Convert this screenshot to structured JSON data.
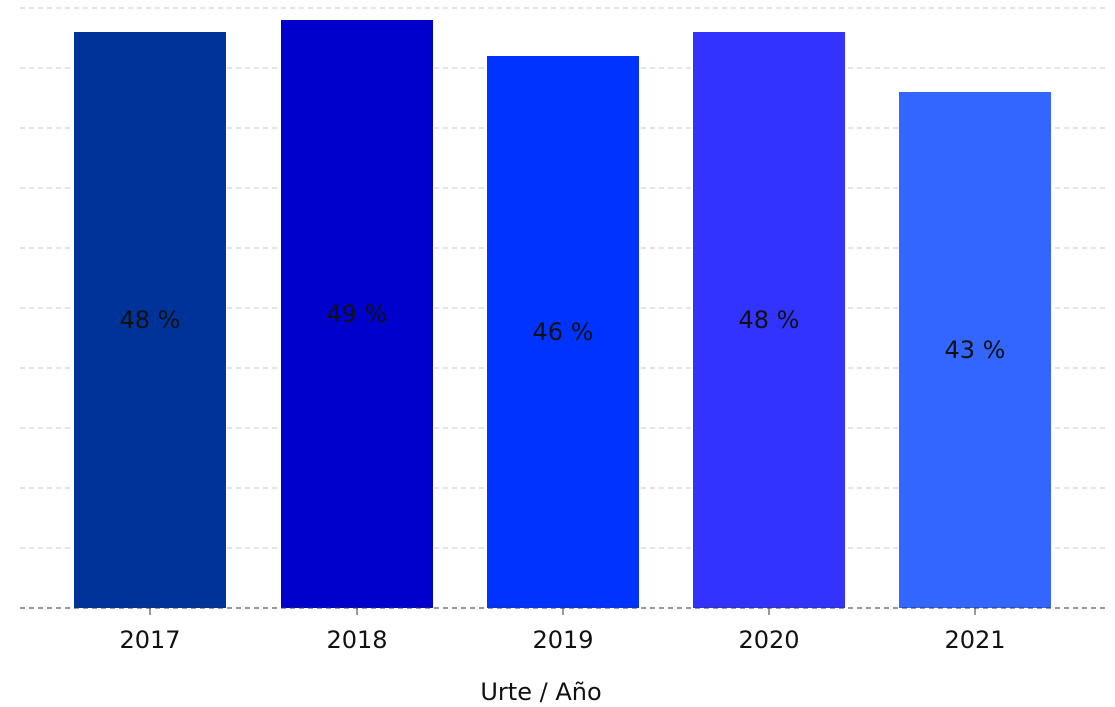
{
  "chart_data": {
    "type": "bar",
    "categories": [
      "2017",
      "2018",
      "2019",
      "2020",
      "2021"
    ],
    "values": [
      48,
      49,
      46,
      48,
      43
    ],
    "data_labels": [
      "48 %",
      "49 %",
      "46 %",
      "48 %",
      "43 %"
    ],
    "colors": [
      "#003399",
      "#0000CC",
      "#0033FF",
      "#3333FF",
      "#3366FF"
    ],
    "xlabel": "Urte / Año",
    "ylabel": "",
    "ylim": [
      0,
      50
    ],
    "grid": true,
    "legend": "none"
  }
}
